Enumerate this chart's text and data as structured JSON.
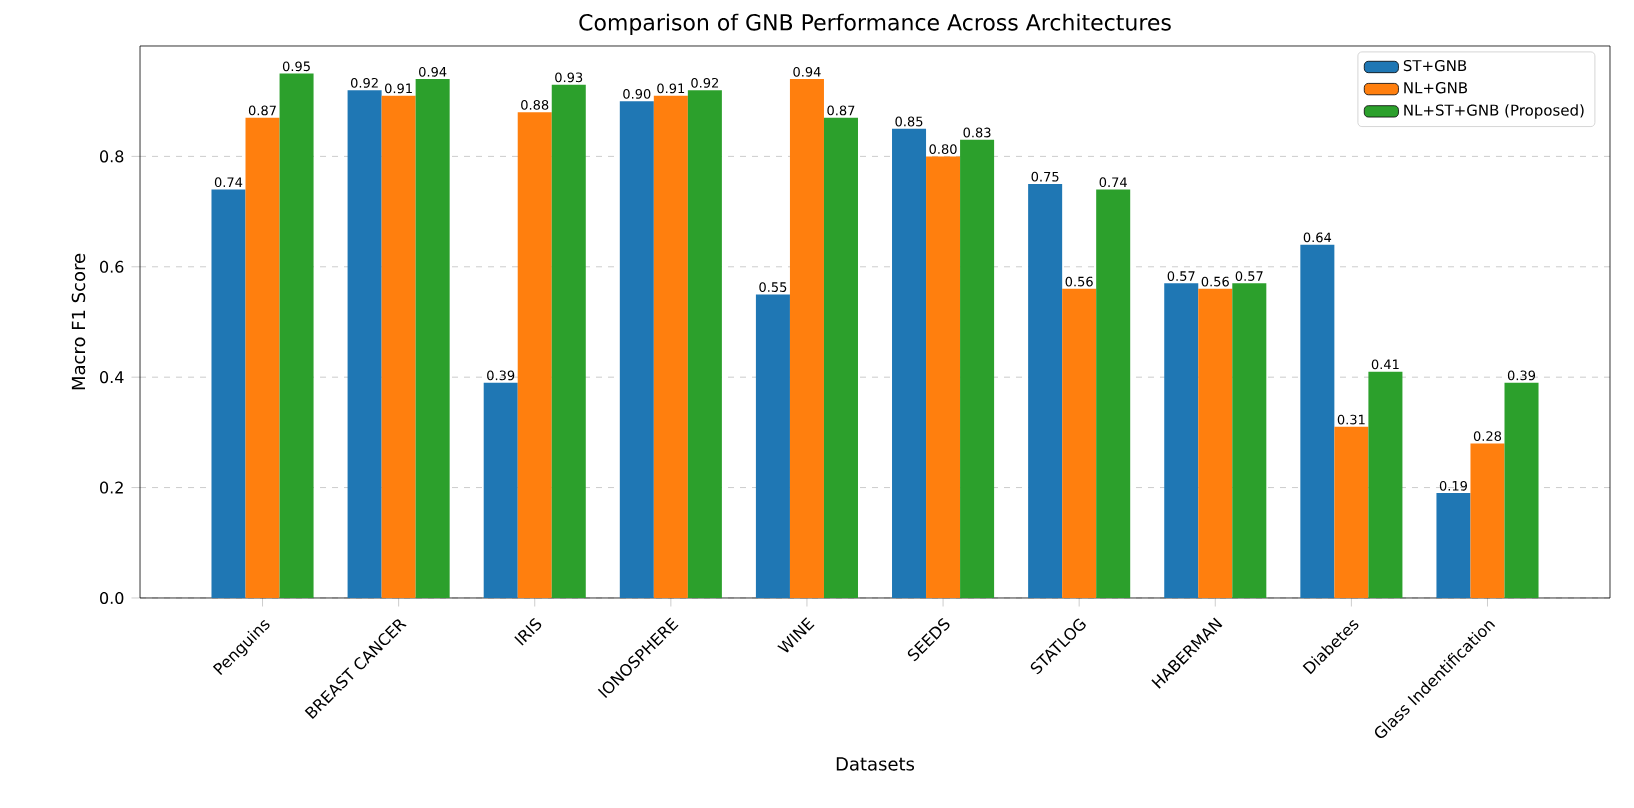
{
  "chart_data": {
    "type": "bar",
    "title": "Comparison of GNB Performance Across Architectures",
    "xlabel": "Datasets",
    "ylabel": "Macro F1 Score",
    "categories": [
      "Penguins",
      "BREAST CANCER",
      "IRIS",
      "IONOSPHERE",
      "WINE",
      "SEEDS",
      "STATLOG",
      "HABERMAN",
      "Diabetes",
      "Glass Indentification"
    ],
    "series": [
      {
        "name": "ST+GNB",
        "color": "#1f77b4",
        "values": [
          0.74,
          0.92,
          0.39,
          0.9,
          0.55,
          0.85,
          0.75,
          0.57,
          0.64,
          0.19
        ],
        "value_labels": [
          "0.74",
          "0.92",
          "0.39",
          "0.90",
          "0.55",
          "0.85",
          "0.75",
          "0.57",
          "0.64",
          "0.19"
        ]
      },
      {
        "name": "NL+GNB",
        "color": "#ff7f0e",
        "values": [
          0.87,
          0.91,
          0.88,
          0.91,
          0.94,
          0.8,
          0.56,
          0.56,
          0.31,
          0.28
        ],
        "value_labels": [
          "0.87",
          "0.91",
          "0.88",
          "0.91",
          "0.94",
          "0.80",
          "0.56",
          "0.56",
          "0.31",
          "0.28"
        ]
      },
      {
        "name": "NL+ST+GNB (Proposed)",
        "color": "#2ca02c",
        "values": [
          0.95,
          0.94,
          0.93,
          0.92,
          0.87,
          0.83,
          0.74,
          0.57,
          0.41,
          0.39
        ],
        "value_labels": [
          "0.95",
          "0.94",
          "0.93",
          "0.92",
          "0.87",
          "0.83",
          "0.74",
          "0.57",
          "0.41",
          "0.39"
        ]
      }
    ],
    "ylim": [
      0,
      1.0
    ],
    "yticks": [
      {
        "value": 0,
        "label": "0.0"
      },
      {
        "value": 0.2,
        "label": "0.2"
      },
      {
        "value": 0.4,
        "label": "0.4"
      },
      {
        "value": 0.6,
        "label": "0.6"
      },
      {
        "value": 0.8,
        "label": "0.8"
      }
    ],
    "grid": "y",
    "legend": "top right"
  }
}
